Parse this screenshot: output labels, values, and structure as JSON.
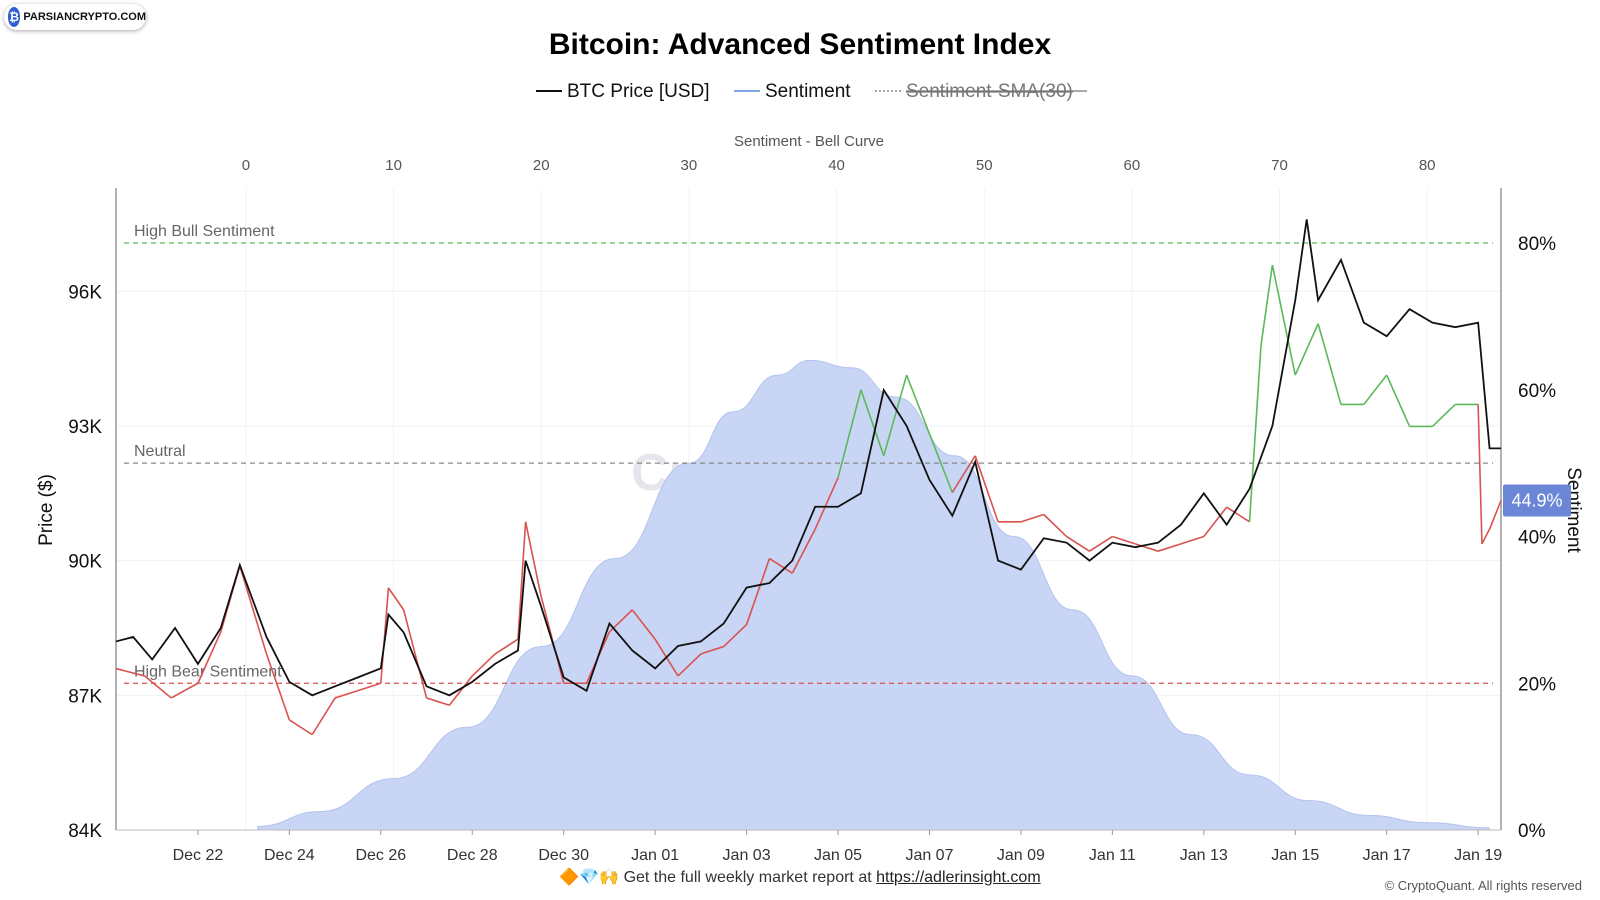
{
  "brand": {
    "badge_text": "PARSIANCRYPTO.COM",
    "watermark": "CryptoQuant"
  },
  "footer": {
    "emojis": "🔶💎🙌",
    "text": "Get the full weekly market report at",
    "link": "https://adlerinsight.com",
    "copyright": "© CryptoQuant. All rights reserved"
  },
  "colors": {
    "price": "#111111",
    "sentiment_legend": "#7fa9e3",
    "sma": "#888888",
    "bull": "#5cb85c",
    "bear": "#d9534f",
    "bell": "#c9d5f4",
    "badge": "#6b86d6"
  },
  "chart_data": {
    "type": "line",
    "title": "Bitcoin: Advanced Sentiment Index",
    "legend": [
      {
        "name": "BTC Price [USD]",
        "style": "solid",
        "color": "#111111"
      },
      {
        "name": "Sentiment",
        "style": "solid",
        "color": "#7fa9e3"
      },
      {
        "name": "Sentiment-SMA(30)",
        "style": "dashed",
        "color": "#888888",
        "hidden": true
      }
    ],
    "legend_placement": "top-center",
    "top_axis": {
      "label": "Sentiment - Bell Curve",
      "range": [
        -8.8,
        85
      ],
      "ticks": [
        0,
        10,
        20,
        30,
        40,
        50,
        60,
        70,
        80
      ]
    },
    "left_axis": {
      "label": "Price ($)",
      "range": [
        84000,
        98300
      ],
      "ticks": [
        "84K",
        "87K",
        "90K",
        "93K",
        "96K"
      ],
      "tick_values": [
        84000,
        87000,
        90000,
        93000,
        96000
      ]
    },
    "right_axis": {
      "label": "Sentiment",
      "range": [
        0,
        87.5
      ],
      "ticks": [
        "0%",
        "20%",
        "40%",
        "60%",
        "80%"
      ],
      "tick_values": [
        0,
        20,
        40,
        60,
        80
      ]
    },
    "x_axis": {
      "range": [
        "2024-12-20T05:00",
        "2025-01-19T12:00"
      ],
      "ticks": [
        "Dec 22",
        "Dec 24",
        "Dec 26",
        "Dec 28",
        "Dec 30",
        "Jan 01",
        "Jan 03",
        "Jan 05",
        "Jan 07",
        "Jan 09",
        "Jan 11",
        "Jan 13",
        "Jan 15",
        "Jan 17",
        "Jan 19"
      ],
      "tick_dates": [
        "2024-12-22",
        "2024-12-24",
        "2024-12-26",
        "2024-12-28",
        "2024-12-30",
        "2025-01-01",
        "2025-01-03",
        "2025-01-05",
        "2025-01-07",
        "2025-01-09",
        "2025-01-11",
        "2025-01-13",
        "2025-01-15",
        "2025-01-17",
        "2025-01-19"
      ]
    },
    "reference_lines": [
      {
        "label": "High Bull Sentiment",
        "sentiment": 80,
        "color": "#5cb85c"
      },
      {
        "label": "Neutral",
        "sentiment": 50,
        "color": "#888888"
      },
      {
        "label": "High Bear Sentiment",
        "sentiment": 20,
        "color": "#d9534f"
      }
    ],
    "current_value": {
      "label": "44.9%",
      "sentiment": 44.9
    },
    "grid": true,
    "bell_curve": {
      "x": [
        0.8,
        5,
        10,
        15,
        20,
        25,
        30,
        33,
        36,
        38.2,
        41,
        44,
        48,
        52,
        56,
        60,
        64,
        68,
        72,
        76,
        80,
        84.2
      ],
      "y": [
        0.5,
        2.5,
        7,
        14,
        25,
        37,
        50,
        57,
        62,
        64,
        63,
        59,
        51,
        40,
        30,
        21,
        13,
        7.5,
        4,
        2,
        1,
        0.3
      ]
    },
    "btc_price": {
      "x": [
        "2024-12-20T05:00",
        "2024-12-20T14:00",
        "2024-12-21T00:00",
        "2024-12-21T12:00",
        "2024-12-22T00:00",
        "2024-12-22T12:00",
        "2024-12-22T22:00",
        "2024-12-23T12:00",
        "2024-12-24T00:00",
        "2024-12-24T12:00",
        "2024-12-25T00:00",
        "2024-12-25T12:00",
        "2024-12-26T00:00",
        "2024-12-26T04:00",
        "2024-12-26T12:00",
        "2024-12-27T00:00",
        "2024-12-27T12:00",
        "2024-12-28T00:00",
        "2024-12-28T12:00",
        "2024-12-29T00:00",
        "2024-12-29T04:00",
        "2024-12-29T12:00",
        "2024-12-30T00:00",
        "2024-12-30T12:00",
        "2024-12-31T00:00",
        "2024-12-31T12:00",
        "2025-01-01T00:00",
        "2025-01-01T12:00",
        "2025-01-02T00:00",
        "2025-01-02T12:00",
        "2025-01-03T00:00",
        "2025-01-03T12:00",
        "2025-01-04T00:00",
        "2025-01-04T12:00",
        "2025-01-05T00:00",
        "2025-01-05T12:00",
        "2025-01-06T00:00",
        "2025-01-06T12:00",
        "2025-01-07T00:00",
        "2025-01-07T12:00",
        "2025-01-08T00:00",
        "2025-01-08T12:00",
        "2025-01-09T00:00",
        "2025-01-09T12:00",
        "2025-01-10T00:00",
        "2025-01-10T12:00",
        "2025-01-11T00:00",
        "2025-01-11T12:00",
        "2025-01-12T00:00",
        "2025-01-12T12:00",
        "2025-01-13T00:00",
        "2025-01-13T12:00",
        "2025-01-14T00:00",
        "2025-01-14T12:00",
        "2025-01-15T00:00",
        "2025-01-15T06:00",
        "2025-01-15T12:00",
        "2025-01-16T00:00",
        "2025-01-16T12:00",
        "2025-01-17T00:00",
        "2025-01-17T12:00",
        "2025-01-18T00:00",
        "2025-01-18T12:00",
        "2025-01-19T00:00",
        "2025-01-19T06:00",
        "2025-01-19T12:00"
      ],
      "y": [
        88200,
        88300,
        87800,
        88500,
        87700,
        88500,
        89900,
        88300,
        87300,
        87000,
        87200,
        87400,
        87600,
        88800,
        88400,
        87200,
        87000,
        87300,
        87700,
        88000,
        90000,
        89000,
        87400,
        87100,
        88600,
        88000,
        87600,
        88100,
        88200,
        88600,
        89400,
        89500,
        90000,
        91200,
        91200,
        91500,
        93800,
        93000,
        91800,
        91000,
        92200,
        90000,
        89800,
        90500,
        90400,
        90000,
        90400,
        90300,
        90400,
        90800,
        91500,
        90800,
        91600,
        93000,
        95800,
        97600,
        95800,
        96700,
        95300,
        95000,
        95600,
        95300,
        95200,
        95300,
        92500,
        92500
      ]
    },
    "sentiment": {
      "x": [
        "2024-12-20T05:00",
        "2024-12-20T20:00",
        "2024-12-21T10:00",
        "2024-12-22T00:00",
        "2024-12-22T12:00",
        "2024-12-22T22:00",
        "2024-12-23T12:00",
        "2024-12-24T00:00",
        "2024-12-24T12:00",
        "2024-12-25T00:00",
        "2024-12-25T12:00",
        "2024-12-26T00:00",
        "2024-12-26T04:00",
        "2024-12-26T12:00",
        "2024-12-27T00:00",
        "2024-12-27T12:00",
        "2024-12-28T00:00",
        "2024-12-28T12:00",
        "2024-12-29T00:00",
        "2024-12-29T04:00",
        "2024-12-29T12:00",
        "2024-12-30T00:00",
        "2024-12-30T12:00",
        "2024-12-31T00:00",
        "2024-12-31T12:00",
        "2025-01-01T00:00",
        "2025-01-01T12:00",
        "2025-01-02T00:00",
        "2025-01-02T12:00",
        "2025-01-03T00:00",
        "2025-01-03T12:00",
        "2025-01-04T00:00",
        "2025-01-04T12:00",
        "2025-01-05T00:00",
        "2025-01-05T12:00",
        "2025-01-06T00:00",
        "2025-01-06T12:00",
        "2025-01-07T00:00",
        "2025-01-07T12:00",
        "2025-01-08T00:00",
        "2025-01-08T12:00",
        "2025-01-09T00:00",
        "2025-01-09T12:00",
        "2025-01-10T00:00",
        "2025-01-10T12:00",
        "2025-01-11T00:00",
        "2025-01-11T12:00",
        "2025-01-12T00:00",
        "2025-01-12T12:00",
        "2025-01-13T00:00",
        "2025-01-13T12:00",
        "2025-01-14T00:00",
        "2025-01-14T06:00",
        "2025-01-14T12:00",
        "2025-01-15T00:00",
        "2025-01-15T12:00",
        "2025-01-16T00:00",
        "2025-01-16T12:00",
        "2025-01-17T00:00",
        "2025-01-17T12:00",
        "2025-01-18T00:00",
        "2025-01-18T12:00",
        "2025-01-19T00:00",
        "2025-01-19T02:00",
        "2025-01-19T06:00",
        "2025-01-19T12:00"
      ],
      "y": [
        22,
        21,
        18,
        20,
        27,
        36,
        24,
        15,
        13,
        18,
        19,
        20,
        33,
        30,
        18,
        17,
        21,
        24,
        26,
        42,
        32,
        20,
        20,
        27,
        30,
        26,
        21,
        24,
        25,
        28,
        37,
        35,
        41,
        48,
        60,
        51,
        62,
        54,
        46,
        51,
        42,
        42,
        43,
        40,
        38,
        40,
        39,
        38,
        39,
        40,
        44,
        42,
        66,
        77,
        62,
        69,
        58,
        58,
        62,
        55,
        55,
        58,
        58,
        39,
        41,
        44.9
      ]
    }
  }
}
